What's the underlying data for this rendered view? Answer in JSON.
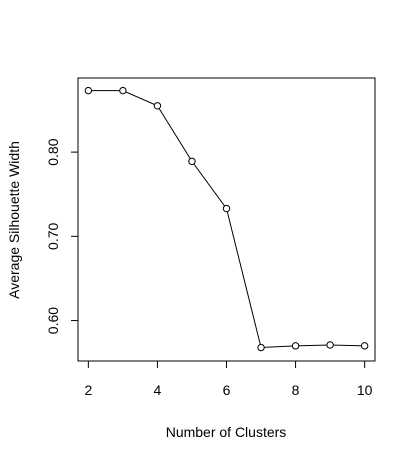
{
  "chart_data": {
    "type": "line",
    "xlabel": "Number of Clusters",
    "ylabel": "Average Silhouette Width",
    "x": [
      2,
      3,
      4,
      5,
      6,
      7,
      8,
      9,
      10
    ],
    "y": [
      0.873,
      0.873,
      0.855,
      0.789,
      0.733,
      0.568,
      0.57,
      0.571,
      0.57
    ],
    "xlim": [
      1.7,
      10.3
    ],
    "ylim": [
      0.552,
      0.888
    ],
    "xticks": [
      2,
      4,
      6,
      8,
      10
    ],
    "yticks": [
      0.6,
      0.7,
      0.8
    ],
    "ytick_labels": [
      "0.60",
      "0.70",
      "0.80"
    ],
    "marker": "open-circle",
    "grid": false,
    "legend": "none",
    "colors": {
      "line": "#000000",
      "background": "#ffffff"
    }
  }
}
